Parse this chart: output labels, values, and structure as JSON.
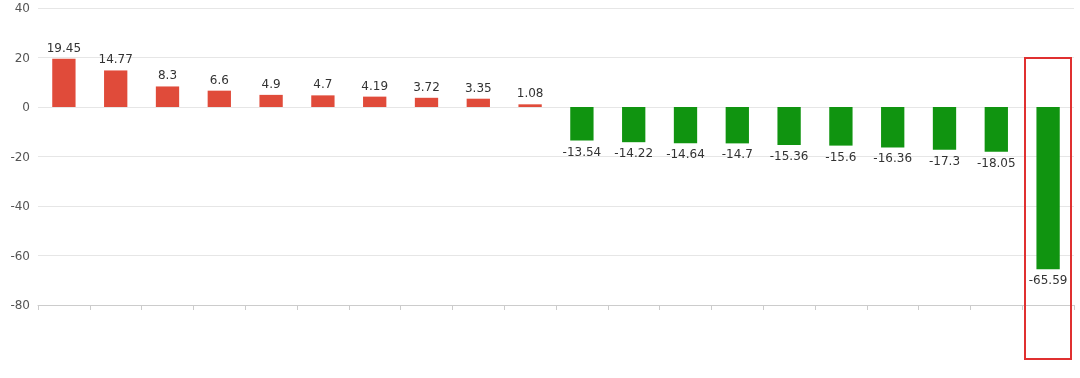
{
  "chart_data": {
    "type": "bar",
    "categories": [
      null,
      null,
      null,
      null,
      null,
      null,
      null,
      null,
      null,
      null,
      null,
      null,
      null,
      null,
      null,
      null,
      null,
      null,
      null,
      null
    ],
    "values": [
      19.45,
      14.77,
      8.3,
      6.6,
      4.9,
      4.7,
      4.19,
      3.72,
      3.35,
      1.08,
      -13.54,
      -14.22,
      -14.64,
      -14.7,
      -15.36,
      -15.6,
      -16.36,
      -17.3,
      -18.05,
      -65.59
    ],
    "colors": [
      "#e04b3a",
      "#e04b3a",
      "#e04b3a",
      "#e04b3a",
      "#e04b3a",
      "#e04b3a",
      "#e04b3a",
      "#e04b3a",
      "#e04b3a",
      "#e04b3a",
      "#109410",
      "#109410",
      "#109410",
      "#109410",
      "#109410",
      "#109410",
      "#109410",
      "#109410",
      "#109410",
      "#109410"
    ],
    "ylim": [
      -80,
      40
    ],
    "yticks": [
      -80,
      -60,
      -40,
      -20,
      0,
      20,
      40
    ],
    "grid": "y",
    "data_labels": true
  }
}
